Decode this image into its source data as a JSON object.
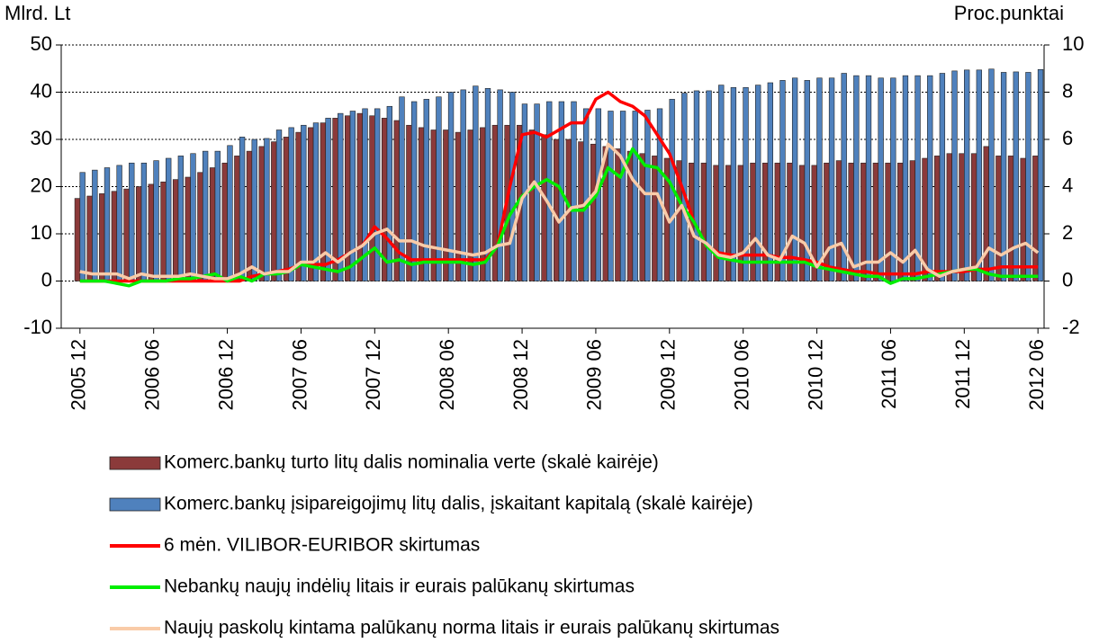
{
  "chart_data": {
    "type": "bar_line",
    "ylabel": "Mlrd. Lt",
    "y2label": "Proc.punktai",
    "categories": [
      "2005 12",
      null,
      null,
      null,
      null,
      null,
      "2006 06",
      null,
      null,
      null,
      null,
      null,
      "2006 12",
      null,
      null,
      null,
      null,
      null,
      "2007 06",
      null,
      null,
      null,
      null,
      null,
      "2007 12",
      null,
      null,
      null,
      null,
      null,
      "2008 06",
      null,
      null,
      null,
      null,
      null,
      "2008 12",
      null,
      null,
      null,
      null,
      null,
      "2009 06",
      null,
      null,
      null,
      null,
      null,
      "2009 12",
      null,
      null,
      null,
      null,
      null,
      "2010 06",
      null,
      null,
      null,
      null,
      null,
      "2010 12",
      null,
      null,
      null,
      null,
      null,
      "2011 06",
      null,
      null,
      null,
      null,
      null,
      "2011 12",
      null,
      null,
      null,
      null,
      null,
      "2012 06"
    ],
    "ylim": [
      -10,
      50
    ],
    "yticks": [
      -10,
      0,
      10,
      20,
      30,
      40,
      50
    ],
    "y2lim": [
      -2,
      10
    ],
    "y2ticks": [
      -2,
      0,
      2,
      4,
      6,
      8,
      10
    ],
    "grid": true,
    "series": [
      {
        "name": "Komerc.bankų turto litų dalis nominalia verte (skalė kairėje)",
        "type": "bar",
        "color": "#8b3a3a",
        "values": [
          17.5,
          18,
          18.5,
          19,
          19.5,
          20,
          20.5,
          21,
          21.5,
          22,
          23,
          24,
          25,
          26.5,
          27.5,
          28.5,
          29.5,
          30.5,
          31.5,
          32.5,
          33.5,
          34.5,
          35,
          35.5,
          35,
          34.5,
          34,
          33,
          32.5,
          32,
          32,
          31.5,
          32,
          32.5,
          33,
          33,
          33,
          32,
          31,
          30,
          30,
          29.5,
          29,
          28.5,
          28,
          27.5,
          27,
          26.5,
          26,
          25.5,
          25,
          25,
          24.5,
          24.5,
          24.5,
          25,
          25,
          25,
          25,
          24.5,
          24.5,
          25,
          25.5,
          25,
          25,
          25,
          25,
          25,
          25.5,
          26,
          26.5,
          27,
          27,
          27,
          28.5,
          26.5,
          26.5,
          26,
          26.5
        ]
      },
      {
        "name": "Komerc.bankų įsipareigojimų litų dalis, įskaitant kapitalą (skalė kairėje)",
        "type": "bar",
        "color": "#4f81bd",
        "values": [
          23,
          23.5,
          24,
          24.5,
          25,
          25,
          25.5,
          26,
          26.5,
          27,
          27.5,
          27.5,
          28.7,
          30.5,
          30,
          30.2,
          32,
          32.5,
          33,
          33.5,
          34.5,
          35.5,
          36,
          36.5,
          36.5,
          37,
          39,
          38,
          38.5,
          39,
          40,
          40.5,
          41.3,
          40.8,
          40.5,
          40,
          37.5,
          37.5,
          38,
          38,
          38,
          36.5,
          36.5,
          36,
          36,
          36,
          36.2,
          36.5,
          38.5,
          39.8,
          40.3,
          40.3,
          41.5,
          41,
          41,
          41.5,
          42,
          42.5,
          43,
          42.5,
          43,
          43,
          44,
          43.5,
          43.5,
          43,
          43,
          43.5,
          43.5,
          43.5,
          44,
          44.5,
          44.7,
          44.7,
          44.9,
          44.2,
          44.3,
          44.2,
          44.8
        ]
      },
      {
        "name": "6 mėn. VILIBOR-EURIBOR skirtumas",
        "type": "line",
        "axis": "y2",
        "color": "#ff0000",
        "values": [
          0,
          0,
          0,
          0,
          0,
          0,
          0,
          0,
          0,
          0,
          0,
          0,
          0,
          0,
          0.2,
          0.3,
          0.4,
          0.5,
          0.7,
          0.7,
          0.7,
          0.9,
          1.2,
          1.5,
          2.3,
          1.8,
          1.2,
          0.9,
          0.9,
          0.9,
          0.9,
          0.9,
          0.9,
          0.9,
          1.5,
          4.0,
          6.2,
          6.3,
          6.1,
          6.4,
          6.7,
          6.7,
          7.7,
          8.0,
          7.6,
          7.4,
          7.0,
          6.2,
          5.4,
          4.0,
          2.5,
          1.5,
          1.2,
          1.1,
          1.1,
          1.1,
          1.1,
          1.0,
          1.0,
          0.9,
          0.8,
          0.6,
          0.5,
          0.4,
          0.4,
          0.3,
          0.3,
          0.3,
          0.3,
          0.4,
          0.4,
          0.4,
          0.4,
          0.5,
          0.5,
          0.6,
          0.6,
          0.6,
          0.6
        ]
      },
      {
        "name": "Nebankų naujų indėlių litais ir eurais palūkanų skirtumas",
        "type": "line",
        "axis": "y2",
        "color": "#00ee00",
        "values": [
          0,
          0,
          0,
          -0.1,
          -0.2,
          0,
          0,
          0,
          0.1,
          0.1,
          0.2,
          0.3,
          0,
          0.2,
          0,
          0.3,
          0.3,
          0.4,
          0.7,
          0.6,
          0.5,
          0.4,
          0.6,
          1.0,
          1.4,
          0.8,
          0.9,
          0.7,
          0.8,
          0.8,
          0.8,
          0.8,
          0.7,
          0.8,
          1.5,
          2.8,
          3.6,
          4.0,
          4.3,
          4.0,
          3.0,
          3.0,
          3.6,
          4.8,
          4.4,
          5.6,
          4.9,
          4.8,
          4.2,
          3.2,
          2.5,
          1.5,
          1.0,
          0.9,
          0.8,
          0.8,
          0.8,
          0.8,
          0.8,
          0.8,
          0.6,
          0.5,
          0.4,
          0.3,
          0.2,
          0.2,
          -0.1,
          0.1,
          0.1,
          0.2,
          0.3,
          0.4,
          0.5,
          0.5,
          0.3,
          0.2,
          0.2,
          0.2,
          0.2
        ]
      },
      {
        "name": "Naujų paskolų kintama palūkanų norma litais ir eurais palūkanų skirtumas",
        "type": "line",
        "axis": "y2",
        "color": "#f9cba8",
        "values": [
          0.4,
          0.3,
          0.3,
          0.3,
          0.1,
          0.3,
          0.2,
          0.2,
          0.2,
          0.3,
          0.2,
          0.1,
          0.1,
          0.3,
          0.6,
          0.3,
          0.4,
          0.4,
          0.8,
          0.8,
          1.2,
          0.8,
          1.2,
          1.5,
          2.0,
          2.2,
          1.7,
          1.7,
          1.5,
          1.4,
          1.3,
          1.2,
          1.1,
          1.2,
          1.5,
          1.6,
          3.5,
          4.2,
          3.4,
          2.5,
          3.1,
          3.2,
          3.8,
          5.8,
          5.3,
          4.3,
          3.7,
          3.7,
          2.5,
          3.2,
          1.9,
          1.6,
          1.1,
          1.0,
          1.2,
          1.8,
          1.1,
          0.9,
          1.9,
          1.6,
          0.6,
          1.4,
          1.6,
          0.6,
          0.8,
          0.8,
          1.2,
          0.8,
          1.3,
          0.5,
          0.2,
          0.4,
          0.5,
          0.6,
          1.4,
          1.1,
          1.4,
          1.6,
          1.2
        ]
      }
    ]
  }
}
